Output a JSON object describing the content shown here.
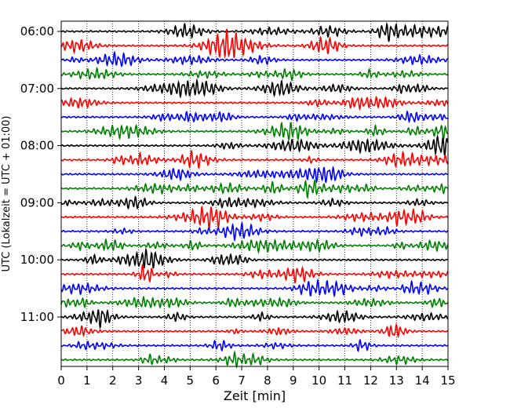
{
  "chart_data": {
    "type": "line",
    "title": "",
    "xlabel": "Zeit  [min]",
    "ylabel": "UTC (Lokalzeit = UTC + 01:00)",
    "xlim": [
      0,
      15
    ],
    "x_ticks": [
      "0",
      "1",
      "2",
      "3",
      "4",
      "5",
      "6",
      "7",
      "8",
      "9",
      "10",
      "11",
      "12",
      "13",
      "14",
      "15"
    ],
    "y_ticks": [
      "06:00",
      "07:00",
      "08:00",
      "09:00",
      "10:00",
      "11:00"
    ],
    "grid": "vertical dotted lines at each minute",
    "trace_count": 24,
    "trace_interval": "15 min",
    "trace_colors": [
      "#000000",
      "#ff0000",
      "#0000ff",
      "#008000"
    ],
    "legend": "none"
  }
}
